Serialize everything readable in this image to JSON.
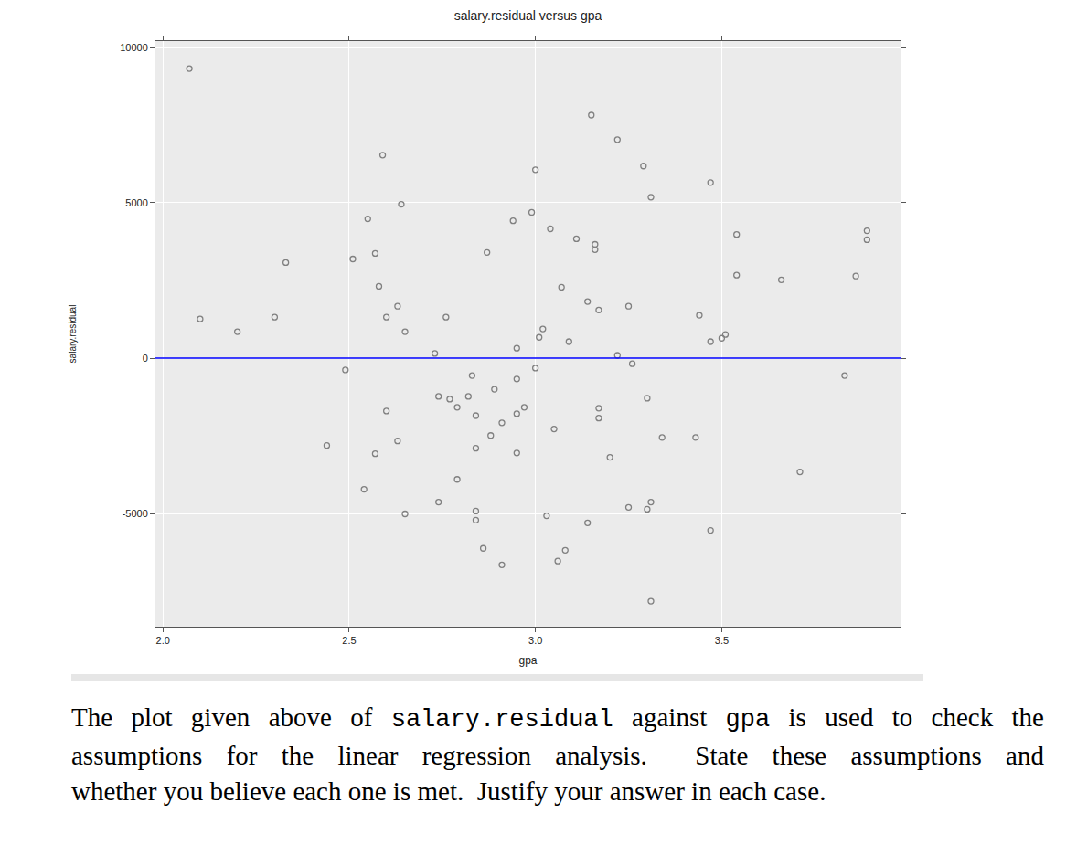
{
  "chart_data": {
    "type": "scatter",
    "title": "salary.residual versus gpa",
    "x_label": "gpa",
    "y_label": "salary.residual",
    "marker": "circle-open",
    "color": "#808080",
    "grid": true,
    "xlim": [
      1.98,
      3.98
    ],
    "xticks": [
      {
        "value": 2,
        "label": "2.0"
      },
      2.5,
      {
        "value": 3,
        "label": "3.0"
      },
      3.5
    ],
    "ylim": [
      -8640,
      10200
    ],
    "yticks": [
      -5000,
      0,
      5000,
      10000
    ],
    "reference_line": {
      "y": 0,
      "color": "#0000ff"
    },
    "x": [
      2.071,
      2.1,
      2.2,
      2.3,
      2.33,
      2.44,
      2.49,
      2.51,
      2.55,
      2.54,
      2.57,
      2.57,
      2.58,
      2.59,
      2.6,
      2.6,
      2.63,
      2.63,
      2.64,
      2.65,
      2.65,
      2.73,
      2.74,
      2.74,
      2.76,
      2.77,
      2.79,
      2.79,
      2.82,
      2.83,
      2.84,
      2.84,
      2.84,
      2.84,
      2.86,
      2.87,
      2.88,
      2.89,
      2.91,
      2.91,
      2.94,
      2.95,
      2.95,
      2.95,
      2.95,
      2.97,
      2.99,
      3.0,
      3.0,
      3.01,
      3.02,
      3.03,
      3.04,
      3.05,
      3.06,
      3.07,
      3.08,
      3.09,
      3.11,
      3.14,
      3.14,
      3.15,
      3.16,
      3.16,
      3.17,
      3.17,
      3.17,
      3.2,
      3.22,
      3.22,
      3.25,
      3.25,
      3.26,
      3.29,
      3.3,
      3.3,
      3.31,
      3.31,
      3.31,
      3.34,
      3.43,
      3.44,
      3.47,
      3.47,
      3.47,
      3.5,
      3.51,
      3.54,
      3.54,
      3.66,
      3.71,
      3.83,
      3.86,
      3.89,
      3.89
    ],
    "values": [
      9315,
      1260,
      850,
      1320,
      3075,
      -2810,
      -380,
      3190,
      4480,
      -4220,
      3370,
      -3075,
      2310,
      6530,
      -1700,
      1320,
      1670,
      -2665,
      4950,
      850,
      -5010,
      150,
      -1230,
      -4630,
      1320,
      -1320,
      -1580,
      -3900,
      -1230,
      -560,
      -1850,
      -2900,
      -4920,
      -5210,
      -6120,
      3400,
      -2490,
      -1000,
      -2080,
      -6650,
      4420,
      320,
      -670,
      -1790,
      -3050,
      -1580,
      4690,
      6060,
      -320,
      670,
      940,
      -5070,
      4160,
      -2280,
      -6530,
      2280,
      -6180,
      530,
      3840,
      1820,
      -5300,
      7820,
      3660,
      3490,
      1550,
      -1610,
      -1930,
      -3190,
      7030,
      90,
      1670,
      -4800,
      -180,
      6180,
      -1290,
      -4860,
      5180,
      -4630,
      -7820,
      -2550,
      -2550,
      1380,
      5650,
      530,
      -5540,
      640,
      760,
      3980,
      2670,
      2520,
      -3660,
      -560,
      2640,
      4100,
      3810
    ]
  },
  "caption": {
    "lines": [
      [
        {
          "text": "The plot given above of ",
          "style": "serif"
        },
        {
          "text": "salary.residual",
          "style": "mono"
        },
        {
          "text": " against ",
          "style": "serif"
        },
        {
          "text": "gpa",
          "style": "mono"
        },
        {
          "text": " is used to check the",
          "style": "serif"
        }
      ],
      [
        {
          "text": "assumptions for the linear regression analysis.  State these assumptions and",
          "style": "serif"
        }
      ],
      [
        {
          "text": "whether you believe each one is met.  Justify your answer in each case.",
          "style": "serif"
        }
      ]
    ]
  }
}
